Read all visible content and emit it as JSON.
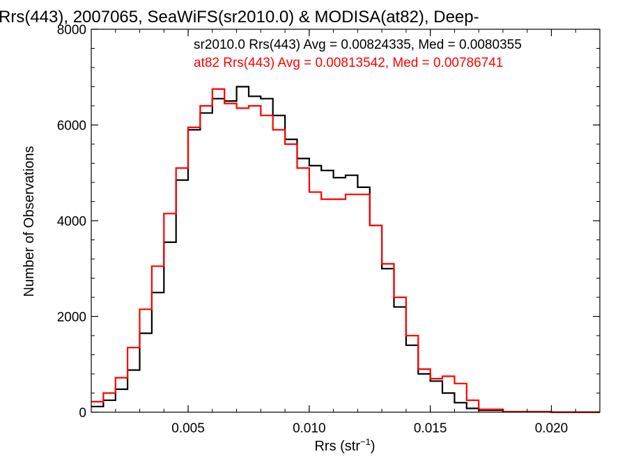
{
  "chart_data": {
    "type": "line",
    "title": "Rrs(443), 2007065, SeaWiFS(sr2010.0) & MODISA(at82), Deep-",
    "xlabel_main": "Rrs (str",
    "xlabel_sup": "−1",
    "xlabel_close": ")",
    "ylabel": "Number of Observations",
    "xlim": [
      0.001,
      0.022
    ],
    "ylim": [
      0,
      8000
    ],
    "x_ticks": [
      0.005,
      0.01,
      0.015,
      0.02
    ],
    "x_tick_labels": [
      "0.005",
      "0.010",
      "0.015",
      "0.020"
    ],
    "y_ticks": [
      0,
      2000,
      4000,
      6000,
      8000
    ],
    "y_tick_labels": [
      "0",
      "2000",
      "4000",
      "6000",
      "8000"
    ],
    "grid": false,
    "series": [
      {
        "name": "sr2010.0",
        "color": "#000000",
        "stat_label": "sr2010.0 Rrs(443) Avg = 0.00824335, Med = 0.0080355",
        "points": [
          [
            0.001,
            120
          ],
          [
            0.0015,
            250
          ],
          [
            0.002,
            480
          ],
          [
            0.0025,
            880
          ],
          [
            0.003,
            1650
          ],
          [
            0.0035,
            2500
          ],
          [
            0.004,
            3550
          ],
          [
            0.0045,
            4850
          ],
          [
            0.005,
            5900
          ],
          [
            0.0055,
            6250
          ],
          [
            0.006,
            6550
          ],
          [
            0.0065,
            6500
          ],
          [
            0.007,
            6800
          ],
          [
            0.0075,
            6600
          ],
          [
            0.008,
            6550
          ],
          [
            0.0085,
            6200
          ],
          [
            0.009,
            5700
          ],
          [
            0.0095,
            5300
          ],
          [
            0.01,
            5150
          ],
          [
            0.0105,
            5050
          ],
          [
            0.011,
            4900
          ],
          [
            0.0115,
            4950
          ],
          [
            0.012,
            4700
          ],
          [
            0.0125,
            3900
          ],
          [
            0.013,
            3000
          ],
          [
            0.0135,
            2200
          ],
          [
            0.014,
            1400
          ],
          [
            0.0145,
            800
          ],
          [
            0.015,
            650
          ],
          [
            0.0155,
            400
          ],
          [
            0.016,
            200
          ],
          [
            0.0165,
            80
          ],
          [
            0.017,
            40
          ],
          [
            0.018,
            10
          ],
          [
            0.02,
            0
          ],
          [
            0.022,
            0
          ]
        ]
      },
      {
        "name": "at82",
        "color": "#ff0000",
        "stat_label": "at82 Rrs(443) Avg = 0.00813542, Med = 0.00786741",
        "points": [
          [
            0.001,
            220
          ],
          [
            0.0015,
            400
          ],
          [
            0.002,
            720
          ],
          [
            0.0025,
            1350
          ],
          [
            0.003,
            2150
          ],
          [
            0.0035,
            3050
          ],
          [
            0.004,
            4150
          ],
          [
            0.0045,
            5100
          ],
          [
            0.005,
            5950
          ],
          [
            0.0055,
            6400
          ],
          [
            0.006,
            6750
          ],
          [
            0.0065,
            6450
          ],
          [
            0.007,
            6350
          ],
          [
            0.0075,
            6400
          ],
          [
            0.008,
            6200
          ],
          [
            0.0085,
            5900
          ],
          [
            0.009,
            5600
          ],
          [
            0.0095,
            5100
          ],
          [
            0.01,
            4600
          ],
          [
            0.0105,
            4450
          ],
          [
            0.011,
            4450
          ],
          [
            0.0115,
            4550
          ],
          [
            0.012,
            4550
          ],
          [
            0.0125,
            3900
          ],
          [
            0.013,
            3100
          ],
          [
            0.0135,
            2400
          ],
          [
            0.014,
            1600
          ],
          [
            0.0145,
            900
          ],
          [
            0.015,
            700
          ],
          [
            0.0155,
            750
          ],
          [
            0.016,
            600
          ],
          [
            0.0165,
            250
          ],
          [
            0.017,
            60
          ],
          [
            0.018,
            10
          ],
          [
            0.02,
            0
          ],
          [
            0.022,
            0
          ]
        ]
      }
    ]
  }
}
